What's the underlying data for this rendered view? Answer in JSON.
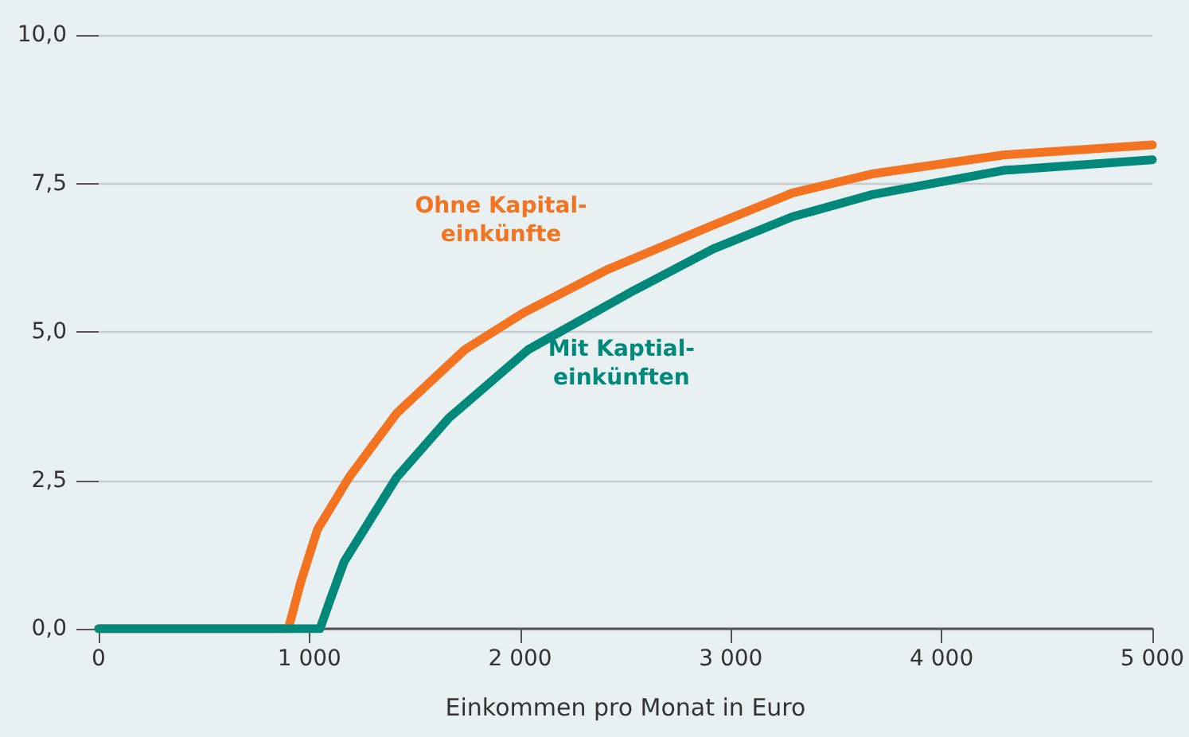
{
  "chart_data": {
    "type": "line",
    "xlabel": "Einkommen pro Monat in Euro",
    "series": [
      {
        "name": "Ohne Kapital-\neinkünfte",
        "color": "#f47321",
        "x": [
          0,
          900,
          960,
          1038,
          1188,
          1414,
          1737,
          2015,
          2414,
          2917,
          3293,
          3669,
          4293,
          5000
        ],
        "values": [
          0,
          0,
          0.8,
          1.67,
          2.55,
          3.63,
          4.7,
          5.32,
          6.05,
          6.8,
          7.34,
          7.66,
          7.98,
          8.15
        ]
      },
      {
        "name": "Mit Kaptial-\neinkünften",
        "color": "#00897b",
        "x": [
          0,
          1050,
          1100,
          1165,
          1414,
          1662,
          2038,
          2541,
          2917,
          3293,
          3669,
          4293,
          5000
        ],
        "values": [
          0,
          0,
          0.5,
          1.13,
          2.55,
          3.55,
          4.7,
          5.7,
          6.4,
          6.94,
          7.31,
          7.72,
          7.9
        ]
      }
    ],
    "xlim": [
      0,
      5000
    ],
    "xticks": [
      0,
      {
        "value": 1000,
        "label": "1 000"
      },
      {
        "value": 2000,
        "label": "2 000"
      },
      {
        "value": 3000,
        "label": "3 000"
      },
      {
        "value": 4000,
        "label": "4 000"
      },
      {
        "value": 5000,
        "label": "5 000"
      }
    ],
    "ylim": [
      0,
      10
    ],
    "yticks": [
      {
        "value": 0,
        "label": "0,0"
      },
      {
        "value": 2.5,
        "label": "2,5"
      },
      {
        "value": 5,
        "label": "5,0"
      },
      {
        "value": 7.5,
        "label": "7,5"
      },
      {
        "value": 10,
        "label": "10,0"
      }
    ],
    "grid": "y",
    "marker": "none",
    "line_style": "solid"
  }
}
